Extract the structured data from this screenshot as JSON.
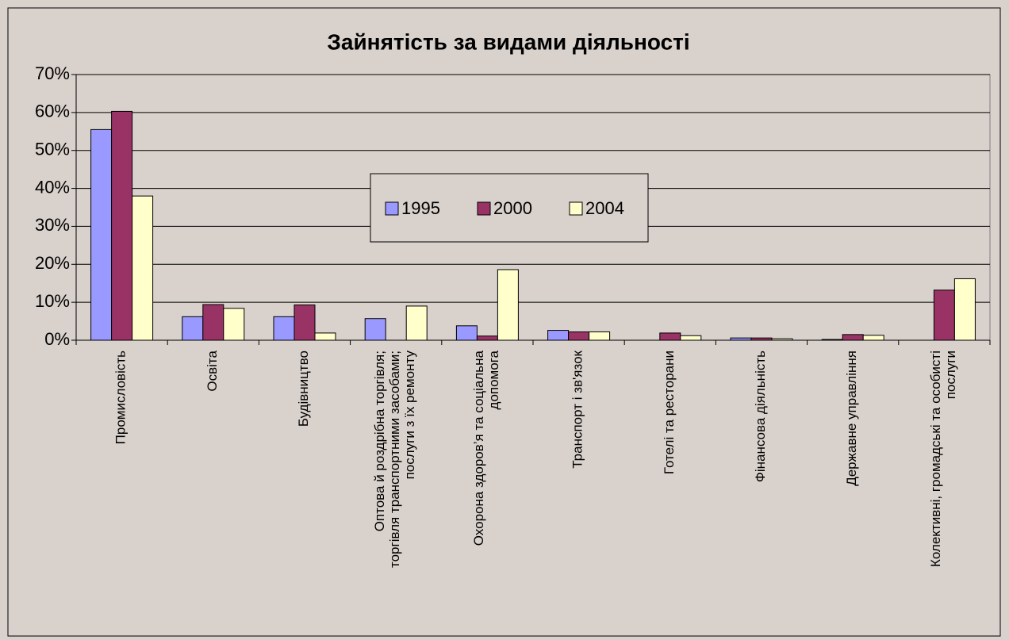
{
  "chart_data": {
    "type": "bar",
    "title": "Зайнятість за видами діяльності",
    "categories": [
      "Промисловість",
      "Освіта",
      "Будівництво",
      "Оптова й роздрібна торгівля; торгівля транспортними засобами; послуги з їх ремонту",
      "Охорона здоров’я та соціальна допомога",
      "Транспорт і зв'язок",
      "Готелі та ресторани",
      "Фінансова діяльність",
      "Державне управління",
      "Колективні, громадські та особисті послуги"
    ],
    "series": [
      {
        "name": "1995",
        "color": "#9999ff",
        "values": [
          55.5,
          6.2,
          6.2,
          5.7,
          3.8,
          2.6,
          0,
          0.6,
          0.2,
          0
        ]
      },
      {
        "name": "2000",
        "color": "#993366",
        "values": [
          60.3,
          9.4,
          9.3,
          0,
          1.1,
          2.2,
          1.9,
          0.6,
          1.5,
          13.2
        ]
      },
      {
        "name": "2004",
        "color": "#ffffcc",
        "values": [
          38.0,
          8.4,
          1.9,
          9.0,
          18.6,
          2.2,
          1.2,
          0.4,
          1.3,
          16.2
        ]
      }
    ],
    "ylim": [
      0,
      70
    ],
    "yticks": [
      {
        "value": 0,
        "label": "0%"
      },
      {
        "value": 10,
        "label": "10%"
      },
      {
        "value": 20,
        "label": "20%"
      },
      {
        "value": 30,
        "label": "30%"
      },
      {
        "value": 40,
        "label": "40%"
      },
      {
        "value": 50,
        "label": "50%"
      },
      {
        "value": 60,
        "label": "60%"
      },
      {
        "value": 70,
        "label": "70%"
      }
    ],
    "grid": true
  }
}
